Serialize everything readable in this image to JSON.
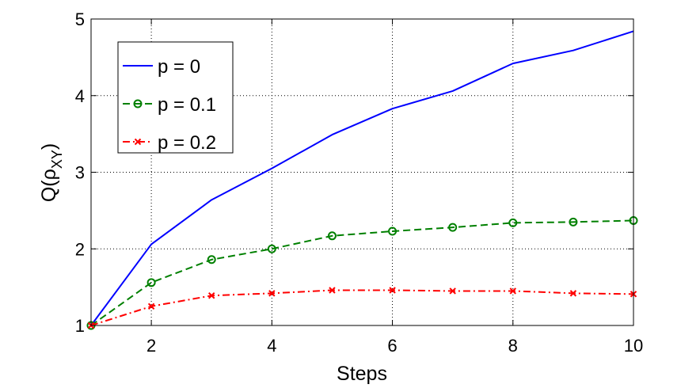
{
  "chart_data": {
    "type": "line",
    "xlabel": "Steps",
    "ylabel": "Q(ρ",
    "ylabel_sub": "XY",
    "ylabel_close": ")",
    "xlim": [
      1,
      10
    ],
    "ylim": [
      1,
      5
    ],
    "xticks": [
      2,
      4,
      6,
      8,
      10
    ],
    "yticks": [
      1,
      2,
      3,
      4,
      5
    ],
    "grid": true,
    "legend_position": "top-left",
    "x": [
      1,
      2,
      3,
      4,
      5,
      6,
      7,
      8,
      9,
      10
    ],
    "series": [
      {
        "name": "p = 0",
        "color": "#0000ff",
        "dash": "solid",
        "marker": "none",
        "values": [
          1.0,
          2.06,
          2.64,
          3.05,
          3.49,
          3.83,
          4.06,
          4.42,
          4.59,
          4.84
        ]
      },
      {
        "name": "p = 0.1",
        "color": "#008000",
        "dash": "dashed",
        "marker": "circle",
        "values": [
          1.0,
          1.56,
          1.86,
          2.0,
          2.17,
          2.23,
          2.28,
          2.34,
          2.35,
          2.37
        ]
      },
      {
        "name": "p = 0.2",
        "color": "#ff0000",
        "dash": "dashdot",
        "marker": "x",
        "values": [
          1.0,
          1.25,
          1.39,
          1.42,
          1.46,
          1.46,
          1.45,
          1.45,
          1.42,
          1.41
        ]
      }
    ]
  }
}
